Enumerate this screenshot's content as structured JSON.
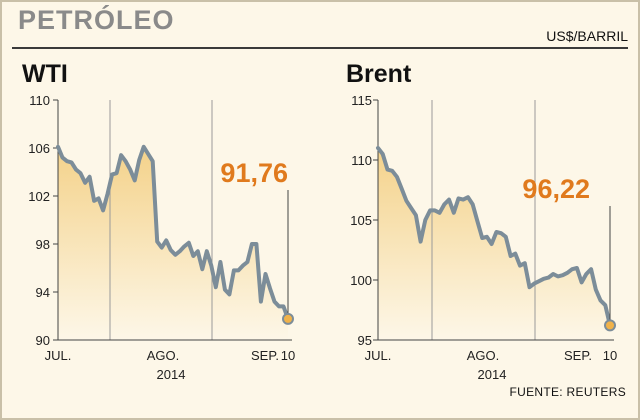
{
  "header": {
    "title": "PETRÓLEO",
    "unit": "US$/BARRIL"
  },
  "source": "FUENTE: REUTERS",
  "colors": {
    "line": "#7c8d99",
    "accent": "#e07a1d",
    "fill_top": "#f4d28a",
    "fill_bottom": "#fdf7e8"
  },
  "chart_data": [
    {
      "type": "line",
      "title": "WTI",
      "ylim": [
        90,
        110
      ],
      "yticks": [
        "110",
        "106",
        "102",
        "98",
        "94",
        "90"
      ],
      "xlabels": [
        "JUL.",
        "AGO.",
        "SEP.",
        "10"
      ],
      "year": "2014",
      "grid": "vertical month separators",
      "last_label": "91,76",
      "series": [
        {
          "values": [
            106.1,
            105.2,
            104.9,
            104.8,
            104.2,
            103.9,
            103.1,
            103.6,
            101.6,
            101.8,
            100.8,
            102.2,
            103.8,
            103.9,
            105.4,
            104.9,
            104.2,
            103.3,
            105.0,
            106.1,
            105.5,
            104.9,
            98.2,
            97.7,
            98.3,
            97.5,
            97.1,
            97.4,
            97.8,
            98.1,
            97.0,
            97.4,
            95.9,
            97.4,
            96.2,
            94.4,
            96.5,
            94.2,
            93.8,
            95.8,
            95.8,
            96.2,
            96.5,
            98.0,
            98.0,
            93.2,
            95.5,
            94.3,
            93.2,
            92.8,
            92.8,
            91.76
          ]
        }
      ]
    },
    {
      "type": "line",
      "title": "Brent",
      "ylim": [
        95,
        115
      ],
      "yticks": [
        "115",
        "110",
        "105",
        "100",
        "95"
      ],
      "xlabels": [
        "JUL.",
        "AGO.",
        "SEP.",
        "10"
      ],
      "year": "2014",
      "grid": "vertical month separators",
      "last_label": "96,22",
      "series": [
        {
          "values": [
            111.0,
            110.5,
            109.2,
            109.1,
            108.6,
            107.6,
            106.6,
            106.0,
            105.4,
            103.2,
            105.0,
            105.8,
            105.8,
            105.6,
            106.3,
            106.7,
            105.6,
            106.8,
            106.7,
            106.9,
            106.3,
            104.9,
            103.5,
            103.6,
            103.0,
            104.0,
            103.9,
            103.6,
            102.0,
            102.2,
            101.2,
            101.4,
            99.4,
            99.7,
            99.9,
            100.1,
            100.2,
            100.5,
            100.3,
            100.4,
            100.6,
            100.9,
            101.0,
            99.8,
            100.5,
            100.9,
            99.2,
            98.3,
            97.9,
            96.22
          ]
        }
      ]
    }
  ]
}
